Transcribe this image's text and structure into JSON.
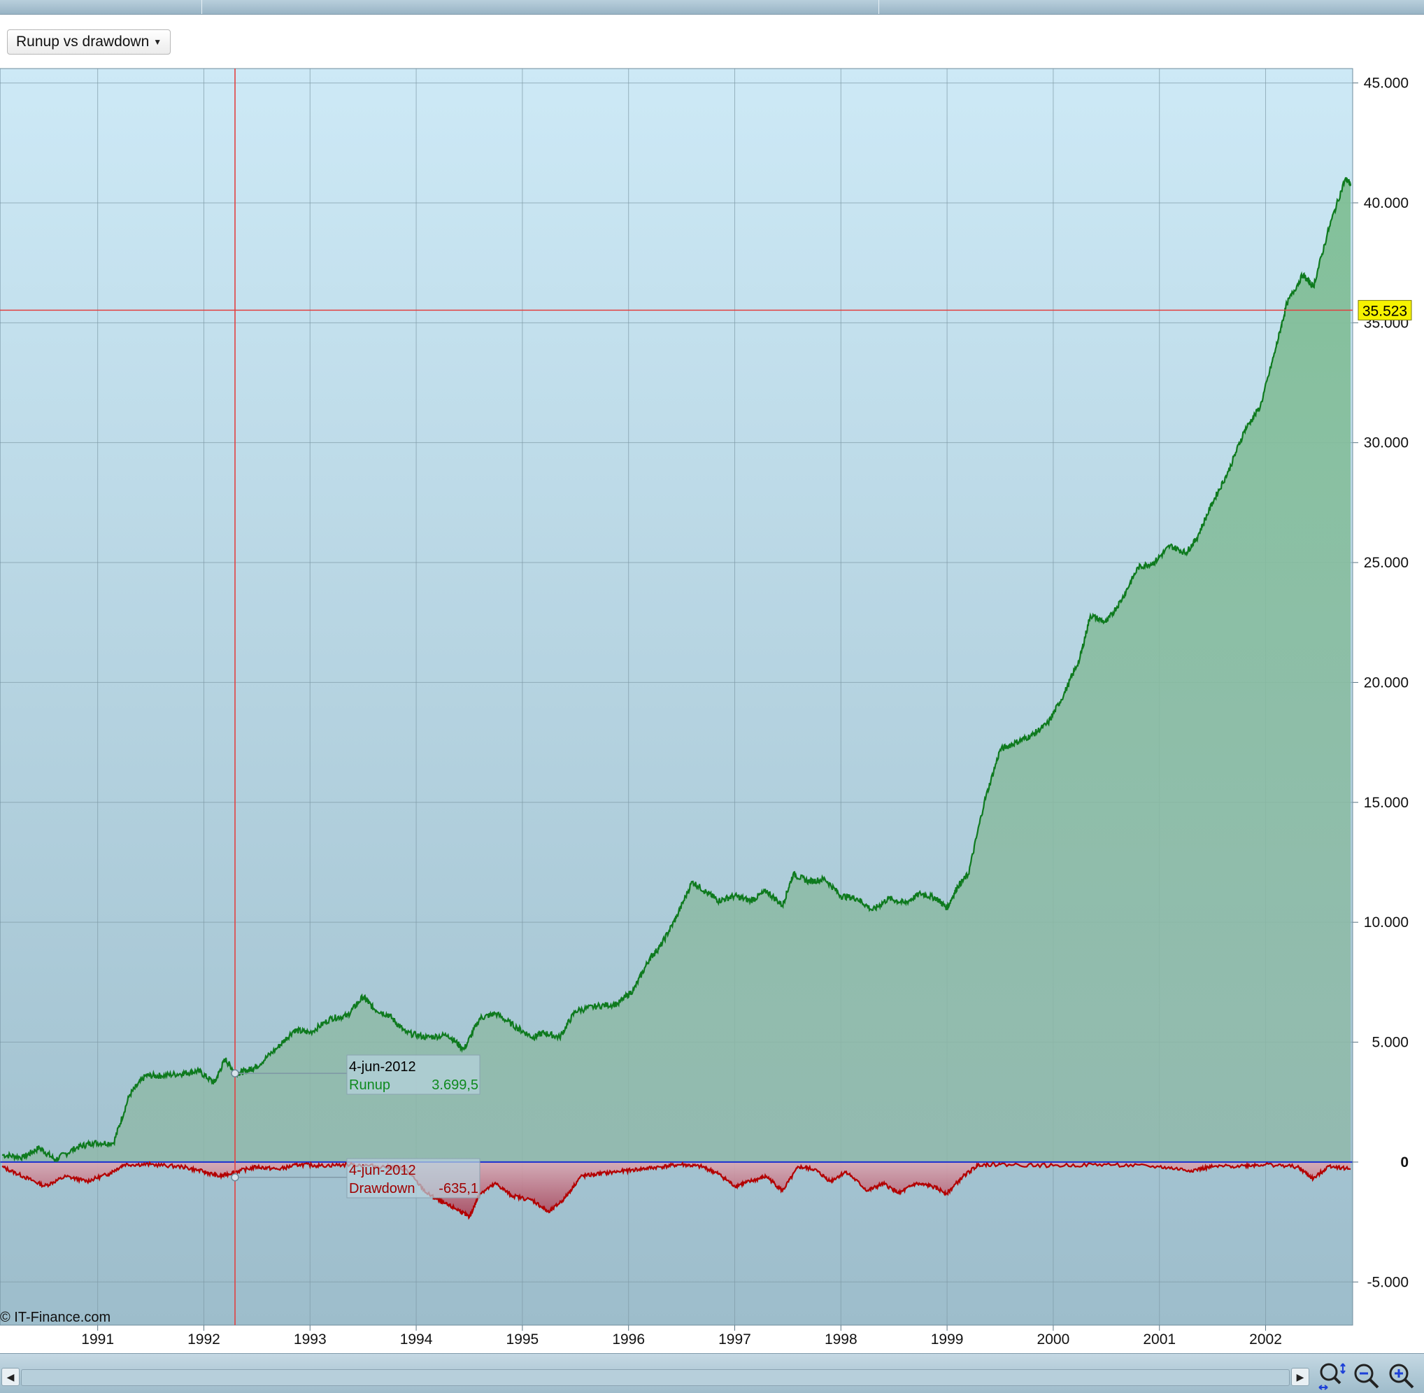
{
  "toolbar": {
    "chart_selector_label": "Runup vs drawdown"
  },
  "copyright": "© IT-Finance.com",
  "crosshair": {
    "y_value_label": "35.523"
  },
  "tooltips": {
    "runup": {
      "date": "4-jun-2012",
      "series": "Runup",
      "value": "3.699,5"
    },
    "drawdown": {
      "date": "4-jun-2012",
      "series": "Drawdown",
      "value": "-635,1"
    }
  },
  "colors": {
    "runup_line": "#0e7a1e",
    "runup_fill": "#7fbf95",
    "drawdown_line": "#b30000",
    "drawdown_fill": "#c07a8a",
    "zero_line": "#1a2fd0",
    "crosshair": "#e24040",
    "value_tag": "#f6f200",
    "background_top": "#cde9f6",
    "background_bottom": "#9dbdcb"
  },
  "chart_data": {
    "type": "area",
    "x_tick_labels": [
      "1991",
      "1992",
      "1993",
      "1994",
      "1995",
      "1996",
      "1997",
      "1998",
      "1999",
      "2000",
      "2001",
      "2002"
    ],
    "y_tick_labels": [
      "45.000",
      "40.000",
      "35.000",
      "30.000",
      "25.000",
      "20.000",
      "15.000",
      "10.000",
      "5.000",
      "0",
      "-5.000"
    ],
    "y_ticks": [
      45000,
      40000,
      35000,
      30000,
      25000,
      20000,
      15000,
      10000,
      5000,
      0,
      -5000
    ],
    "ylim": [
      -6800,
      45600
    ],
    "xlim": [
      1990.08,
      2002.82
    ],
    "grid": true,
    "series": [
      {
        "name": "Runup",
        "x": [
          1990.1,
          1990.3,
          1990.45,
          1990.6,
          1990.8,
          1990.95,
          1991.15,
          1991.3,
          1991.45,
          1991.6,
          1991.8,
          1991.95,
          1992.1,
          1992.2,
          1992.3,
          1992.4,
          1992.5,
          1992.7,
          1992.85,
          1993.0,
          1993.2,
          1993.35,
          1993.5,
          1993.6,
          1993.75,
          1993.9,
          1994.1,
          1994.3,
          1994.45,
          1994.6,
          1994.75,
          1994.95,
          1995.1,
          1995.2,
          1995.35,
          1995.5,
          1995.7,
          1995.9,
          1996.05,
          1996.2,
          1996.3,
          1996.45,
          1996.6,
          1996.75,
          1996.85,
          1997.0,
          1997.15,
          1997.3,
          1997.45,
          1997.55,
          1997.7,
          1997.85,
          1998.0,
          1998.15,
          1998.3,
          1998.45,
          1998.6,
          1998.75,
          1998.9,
          1999.0,
          1999.1,
          1999.2,
          1999.35,
          1999.5,
          1999.65,
          1999.8,
          1999.95,
          2000.1,
          2000.25,
          2000.35,
          2000.5,
          2000.65,
          2000.8,
          2000.95,
          2001.1,
          2001.25,
          2001.35,
          2001.5,
          2001.65,
          2001.8,
          2001.95,
          2002.1,
          2002.2,
          2002.35,
          2002.45,
          2002.6,
          2002.75,
          2002.8
        ],
        "values": [
          300,
          200,
          600,
          100,
          600,
          800,
          800,
          2800,
          3600,
          3600,
          3700,
          3800,
          3300,
          4300,
          3700,
          3800,
          4000,
          4800,
          5500,
          5400,
          6000,
          6100,
          6900,
          6400,
          6100,
          5400,
          5200,
          5300,
          4700,
          6000,
          6200,
          5600,
          5200,
          5400,
          5200,
          6300,
          6500,
          6600,
          7200,
          8500,
          9000,
          10200,
          11700,
          11200,
          10900,
          11100,
          10900,
          11300,
          10700,
          12000,
          11700,
          11800,
          11100,
          11000,
          10500,
          11000,
          10800,
          11200,
          11000,
          10600,
          11500,
          12000,
          15000,
          17200,
          17500,
          17800,
          18300,
          19500,
          21000,
          22800,
          22500,
          23500,
          24800,
          25000,
          25700,
          25400,
          26000,
          27500,
          28800,
          30500,
          31500,
          34000,
          35800,
          37000,
          36500,
          39000,
          41000,
          40800
        ]
      },
      {
        "name": "Drawdown",
        "x": [
          1990.1,
          1990.3,
          1990.5,
          1990.7,
          1990.9,
          1991.1,
          1991.25,
          1991.5,
          1991.8,
          1992.0,
          1992.15,
          1992.3,
          1992.5,
          1992.7,
          1992.9,
          1993.1,
          1993.4,
          1993.7,
          1993.9,
          1994.1,
          1994.25,
          1994.4,
          1994.5,
          1994.6,
          1994.75,
          1994.9,
          1995.1,
          1995.25,
          1995.4,
          1995.55,
          1995.7,
          1995.9,
          1996.1,
          1996.3,
          1996.5,
          1996.7,
          1996.85,
          1997.0,
          1997.15,
          1997.3,
          1997.45,
          1997.6,
          1997.75,
          1997.9,
          1998.05,
          1998.25,
          1998.4,
          1998.55,
          1998.7,
          1998.85,
          1999.0,
          1999.15,
          1999.3,
          1999.5,
          2000.0,
          2000.5,
          2001.0,
          2001.3,
          2001.5,
          2001.8,
          2002.0,
          2002.3,
          2002.45,
          2002.6,
          2002.8
        ],
        "values": [
          -200,
          -600,
          -1000,
          -600,
          -800,
          -500,
          -100,
          -100,
          -200,
          -400,
          -600,
          -400,
          -200,
          -300,
          -100,
          -150,
          -100,
          -200,
          -300,
          -1300,
          -1700,
          -2000,
          -2300,
          -1300,
          -900,
          -1400,
          -1600,
          -2100,
          -1500,
          -600,
          -500,
          -400,
          -300,
          -200,
          -100,
          -200,
          -500,
          -1000,
          -800,
          -600,
          -1200,
          -200,
          -300,
          -800,
          -400,
          -1200,
          -900,
          -1300,
          -900,
          -1000,
          -1300,
          -600,
          -100,
          -100,
          -150,
          -100,
          -200,
          -350,
          -200,
          -150,
          -100,
          -200,
          -700,
          -150,
          -300
        ]
      }
    ]
  }
}
